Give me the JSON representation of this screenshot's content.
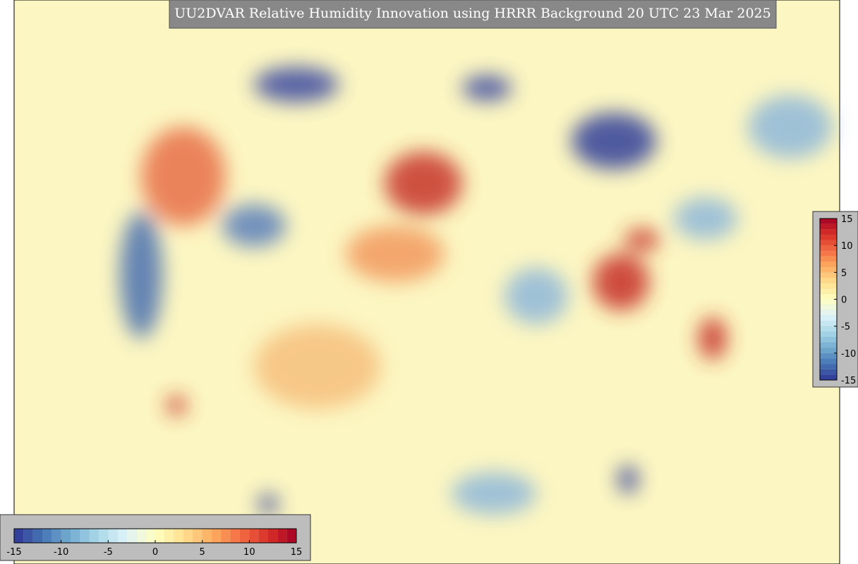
{
  "title": "UU2DVAR Relative Humidity Innovation using HRRR Background 20 UTC 23 Mar 2025",
  "colormap": [
    "#313695",
    "#4575b4",
    "#74add1",
    "#abd9e9",
    "#e0f3f8",
    "#ffffbf",
    "#fee090",
    "#fdae61",
    "#f46d43",
    "#d73027",
    "#a50026"
  ],
  "colorbars": [
    {
      "orientation": "vertical",
      "lim": [
        -15,
        15
      ],
      "ticks": [
        -15,
        -10,
        -5,
        0,
        5,
        10,
        15
      ]
    },
    {
      "orientation": "horizontal",
      "lim": [
        -15,
        15
      ],
      "ticks": [
        -15,
        -10,
        -5,
        0,
        5,
        10,
        15
      ]
    }
  ]
}
